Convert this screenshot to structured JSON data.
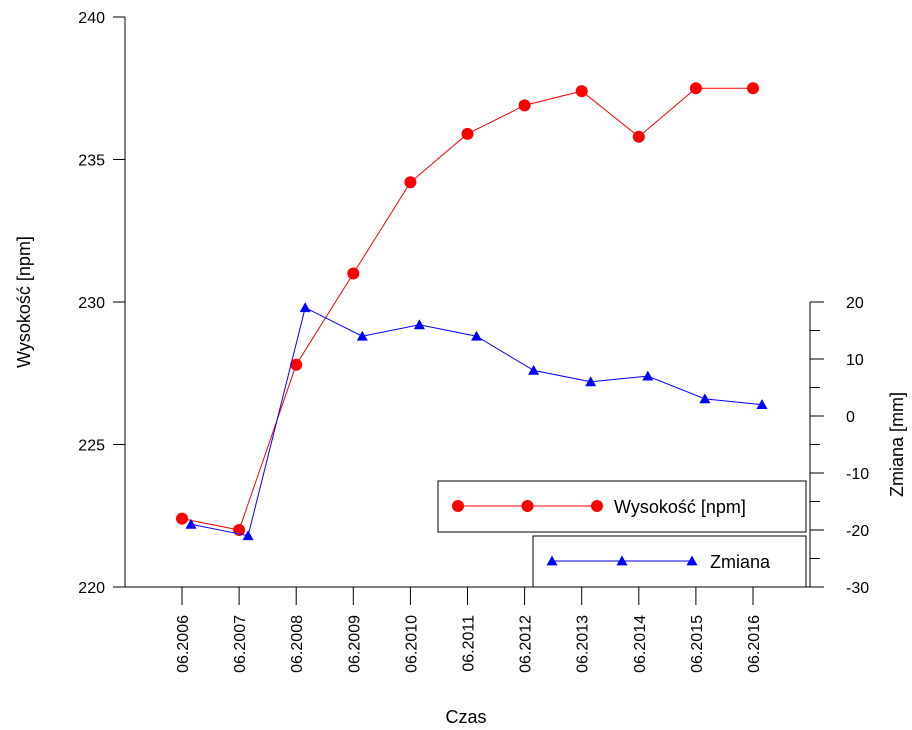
{
  "chart_data": {
    "type": "line",
    "xlabel": "Czas",
    "ylabel_left": "Wysokość [npm]",
    "ylabel_right": "Zmiana [mm]",
    "categories": [
      "06.2006",
      "06.2007",
      "06.2008",
      "06.2009",
      "06.2010",
      "06.2011",
      "06.2012",
      "06.2013",
      "06.2014",
      "06.2015",
      "06.2016"
    ],
    "y_left": {
      "range": [
        220,
        240
      ],
      "ticks": [
        220,
        225,
        230,
        235,
        240
      ]
    },
    "y_right": {
      "range": [
        -30,
        20
      ],
      "ticks": [
        -30,
        -20,
        -10,
        0,
        10,
        20
      ]
    },
    "grid": false,
    "legend_position": "bottom-right",
    "series": [
      {
        "name": "Wysokość [npm]",
        "axis": "left",
        "color": "#ff0000",
        "marker": "circle",
        "values": [
          222.4,
          222.0,
          227.8,
          231.0,
          234.2,
          235.9,
          236.9,
          237.4,
          235.8,
          237.5,
          237.5
        ]
      },
      {
        "name": "Zmiana",
        "axis": "right",
        "color": "#0000ff",
        "marker": "triangle",
        "values": [
          -19,
          -21,
          19,
          14,
          16,
          14,
          8,
          6,
          7,
          3,
          2
        ]
      }
    ]
  }
}
